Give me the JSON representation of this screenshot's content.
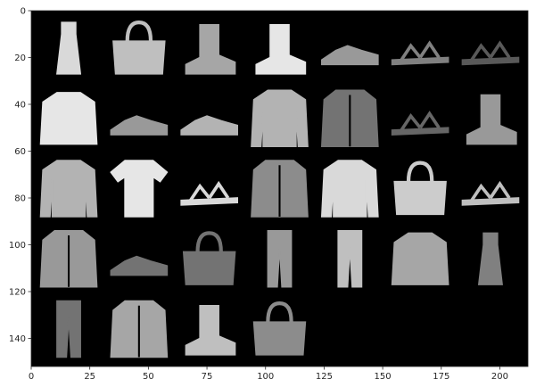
{
  "chart_data": {
    "type": "heatmap",
    "title": "",
    "xlabel": "",
    "ylabel": "",
    "image_size": [
      212,
      152
    ],
    "tile_size": 28,
    "padding": 2,
    "grid_columns": 7,
    "grid_rows": 5,
    "colormap": "gray",
    "background_color": "#000000",
    "xlim": [
      0,
      212
    ],
    "ylim": [
      152,
      0
    ],
    "x_ticks": [
      0,
      25,
      50,
      75,
      100,
      125,
      150,
      175,
      200
    ],
    "x_tick_labels": [
      "0",
      "25",
      "50",
      "75",
      "100",
      "125",
      "150",
      "175",
      "200"
    ],
    "y_ticks": [
      0,
      20,
      40,
      60,
      80,
      100,
      120,
      140
    ],
    "y_tick_labels": [
      "0",
      "20",
      "40",
      "60",
      "80",
      "100",
      "120",
      "140"
    ],
    "grid": false,
    "items": [
      {
        "row": 0,
        "col": 0,
        "icon": "dress-icon",
        "brightness": 0.85
      },
      {
        "row": 0,
        "col": 1,
        "icon": "bag-icon",
        "brightness": 0.75
      },
      {
        "row": 0,
        "col": 2,
        "icon": "ankle-boot-icon",
        "brightness": 0.65
      },
      {
        "row": 0,
        "col": 3,
        "icon": "ankle-boot-icon",
        "brightness": 0.9
      },
      {
        "row": 0,
        "col": 4,
        "icon": "sneaker-icon",
        "brightness": 0.6
      },
      {
        "row": 0,
        "col": 5,
        "icon": "sandal-icon",
        "brightness": 0.5
      },
      {
        "row": 0,
        "col": 6,
        "icon": "sandal-icon",
        "brightness": 0.35
      },
      {
        "row": 1,
        "col": 0,
        "icon": "shirt-icon",
        "brightness": 0.9
      },
      {
        "row": 1,
        "col": 1,
        "icon": "sneaker-icon",
        "brightness": 0.6
      },
      {
        "row": 1,
        "col": 2,
        "icon": "sneaker-icon",
        "brightness": 0.7
      },
      {
        "row": 1,
        "col": 3,
        "icon": "pullover-icon",
        "brightness": 0.7
      },
      {
        "row": 1,
        "col": 4,
        "icon": "coat-icon",
        "brightness": 0.45
      },
      {
        "row": 1,
        "col": 5,
        "icon": "sandal-icon",
        "brightness": 0.4
      },
      {
        "row": 1,
        "col": 6,
        "icon": "ankle-boot-icon",
        "brightness": 0.6
      },
      {
        "row": 2,
        "col": 0,
        "icon": "pullover-icon",
        "brightness": 0.7
      },
      {
        "row": 2,
        "col": 1,
        "icon": "t-shirt-icon",
        "brightness": 0.9
      },
      {
        "row": 2,
        "col": 2,
        "icon": "sandal-icon",
        "brightness": 0.85
      },
      {
        "row": 2,
        "col": 3,
        "icon": "coat-icon",
        "brightness": 0.55
      },
      {
        "row": 2,
        "col": 4,
        "icon": "pullover-icon",
        "brightness": 0.85
      },
      {
        "row": 2,
        "col": 5,
        "icon": "bag-icon",
        "brightness": 0.8
      },
      {
        "row": 2,
        "col": 6,
        "icon": "sandal-icon",
        "brightness": 0.75
      },
      {
        "row": 3,
        "col": 0,
        "icon": "coat-icon",
        "brightness": 0.6
      },
      {
        "row": 3,
        "col": 1,
        "icon": "sneaker-icon",
        "brightness": 0.45
      },
      {
        "row": 3,
        "col": 2,
        "icon": "bag-icon",
        "brightness": 0.45
      },
      {
        "row": 3,
        "col": 3,
        "icon": "trouser-icon",
        "brightness": 0.6
      },
      {
        "row": 3,
        "col": 4,
        "icon": "trouser-icon",
        "brightness": 0.75
      },
      {
        "row": 3,
        "col": 5,
        "icon": "shirt-icon",
        "brightness": 0.65
      },
      {
        "row": 3,
        "col": 6,
        "icon": "dress-icon",
        "brightness": 0.5
      },
      {
        "row": 4,
        "col": 0,
        "icon": "trouser-icon",
        "brightness": 0.45
      },
      {
        "row": 4,
        "col": 1,
        "icon": "coat-icon",
        "brightness": 0.65
      },
      {
        "row": 4,
        "col": 2,
        "icon": "ankle-boot-icon",
        "brightness": 0.75
      },
      {
        "row": 4,
        "col": 3,
        "icon": "bag-icon",
        "brightness": 0.55
      }
    ],
    "empty_tiles": [
      {
        "row": 4,
        "col": 4
      },
      {
        "row": 4,
        "col": 5
      },
      {
        "row": 4,
        "col": 6
      }
    ]
  }
}
